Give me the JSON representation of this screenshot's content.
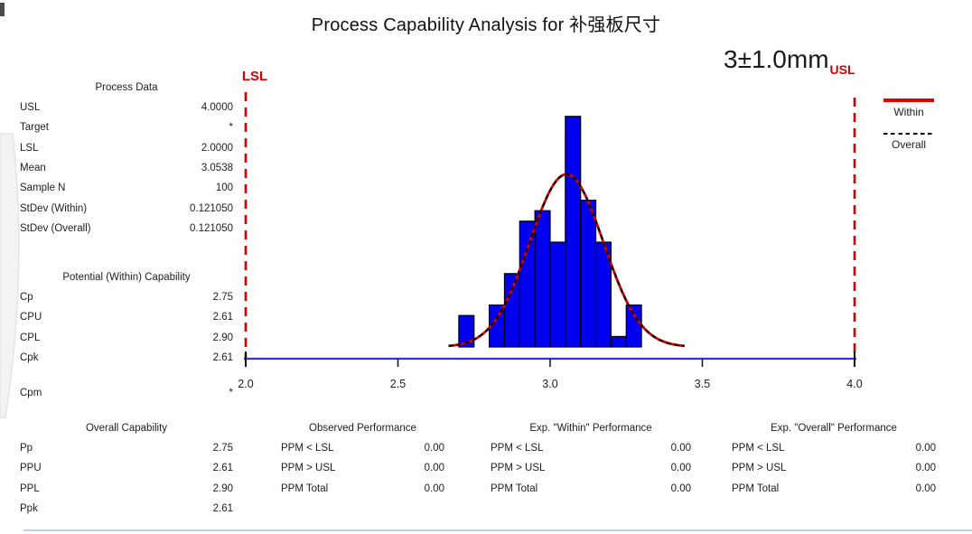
{
  "title": "Process Capability Analysis for 补强板尺寸",
  "annotations": {
    "lsl_label": "LSL",
    "spec": "3±1.0mm",
    "usl_label": "USL"
  },
  "legend": {
    "within": "Within",
    "overall": "Overall"
  },
  "colors": {
    "bar_fill": "#0000EE",
    "bar_border": "#000000",
    "curve_within": "#D50000",
    "curve_overall": "#000000",
    "spec_line": "#D50000",
    "axis_line": "#3333C4",
    "tick": "#111111",
    "bottom_rule": "#BDD2E4"
  },
  "process_data": {
    "header": "Process Data",
    "rows": [
      {
        "label": "USL",
        "value": "4.0000"
      },
      {
        "label": "Target",
        "value": "*"
      },
      {
        "label": "LSL",
        "value": "2.0000"
      },
      {
        "label": "Mean",
        "value": "3.0538"
      },
      {
        "label": "Sample N",
        "value": "100"
      },
      {
        "label": "StDev (Within)",
        "value": "0.121050"
      },
      {
        "label": "StDev (Overall)",
        "value": "0.121050"
      }
    ]
  },
  "potential_capability": {
    "header": "Potential (Within) Capability",
    "rows": [
      {
        "label": "Cp",
        "value": "2.75"
      },
      {
        "label": "CPU",
        "value": "2.61"
      },
      {
        "label": "CPL",
        "value": "2.90"
      },
      {
        "label": "Cpk",
        "value": "2.61"
      },
      {
        "label": "Cpm",
        "value": "*"
      }
    ]
  },
  "overall_capability": {
    "header": "Overall Capability",
    "rows": [
      {
        "label": "Pp",
        "value": "2.75"
      },
      {
        "label": "PPU",
        "value": "2.61"
      },
      {
        "label": "PPL",
        "value": "2.90"
      },
      {
        "label": "Ppk",
        "value": "2.61"
      }
    ]
  },
  "performance_tables": [
    {
      "header": "Observed Performance",
      "rows": [
        {
          "label": "PPM < LSL",
          "value": "0.00"
        },
        {
          "label": "PPM > USL",
          "value": "0.00"
        },
        {
          "label": "PPM Total",
          "value": "0.00"
        }
      ]
    },
    {
      "header": "Exp. \"Within\" Performance",
      "rows": [
        {
          "label": "PPM < LSL",
          "value": "0.00"
        },
        {
          "label": "PPM > USL",
          "value": "0.00"
        },
        {
          "label": "PPM Total",
          "value": "0.00"
        }
      ]
    },
    {
      "header": "Exp. \"Overall\" Performance",
      "rows": [
        {
          "label": "PPM < LSL",
          "value": "0.00"
        },
        {
          "label": "PPM > USL",
          "value": "0.00"
        },
        {
          "label": "PPM Total",
          "value": "0.00"
        }
      ]
    }
  ],
  "chart_data": {
    "type": "bar",
    "subtype": "capability-histogram",
    "title": "Process Capability Analysis for 补强板尺寸",
    "xlim": [
      2.0,
      4.0
    ],
    "x_tick_labels": [
      "2.0",
      "2.5",
      "3.0",
      "3.5",
      "4.0"
    ],
    "bin_start": 2.7,
    "bin_width": 0.05,
    "bin_counts": [
      3,
      0,
      4,
      7,
      12,
      13,
      10,
      22,
      14,
      10,
      1,
      4
    ],
    "lsl": 2.0,
    "usl": 4.0,
    "mean": 3.0538,
    "stdev_within": 0.12105,
    "stdev_overall": 0.12105,
    "sample_n": 100,
    "grid": false,
    "legend_position": "top-right",
    "series": [
      {
        "name": "Within",
        "style": "solid",
        "color": "#D50000"
      },
      {
        "name": "Overall",
        "style": "dashed",
        "color": "#000000"
      }
    ]
  }
}
